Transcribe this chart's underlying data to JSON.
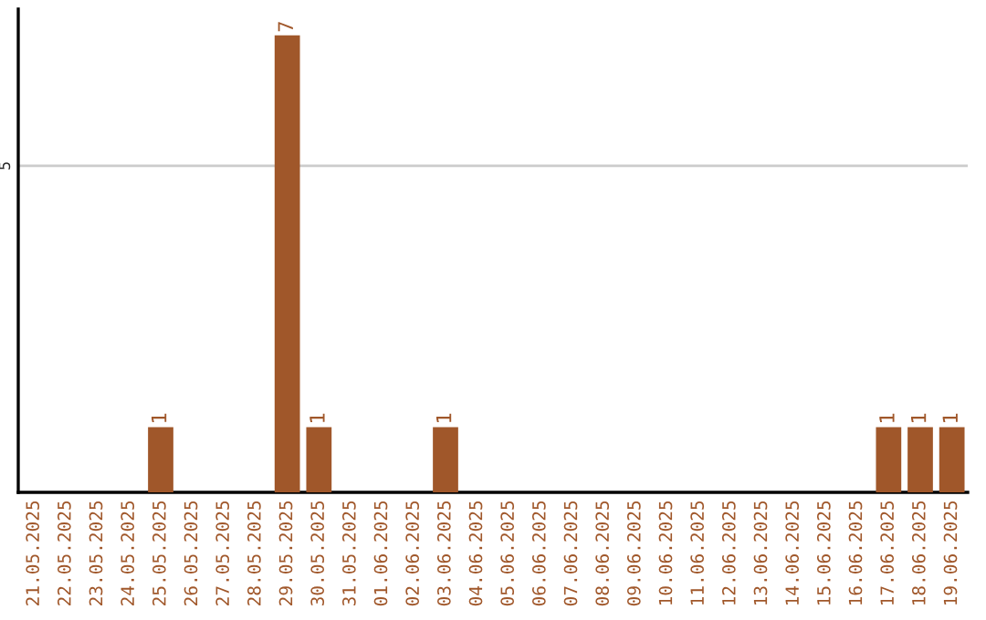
{
  "chart_data": {
    "type": "bar",
    "categories": [
      "21.05.2025",
      "22.05.2025",
      "23.05.2025",
      "24.05.2025",
      "25.05.2025",
      "26.05.2025",
      "27.05.2025",
      "28.05.2025",
      "29.05.2025",
      "30.05.2025",
      "31.05.2025",
      "01.06.2025",
      "02.06.2025",
      "03.06.2025",
      "04.06.2025",
      "05.06.2025",
      "06.06.2025",
      "07.06.2025",
      "08.06.2025",
      "09.06.2025",
      "10.06.2025",
      "11.06.2025",
      "12.06.2025",
      "13.06.2025",
      "14.06.2025",
      "15.06.2025",
      "16.06.2025",
      "17.06.2025",
      "18.06.2025",
      "19.06.2025"
    ],
    "values": [
      0,
      0,
      0,
      0,
      1,
      0,
      0,
      0,
      7,
      1,
      0,
      0,
      0,
      1,
      0,
      0,
      0,
      0,
      0,
      0,
      0,
      0,
      0,
      0,
      0,
      0,
      0,
      1,
      1,
      1
    ],
    "value_labels": [
      null,
      null,
      null,
      null,
      "1",
      null,
      null,
      null,
      "7",
      "1",
      null,
      null,
      null,
      "1",
      null,
      null,
      null,
      null,
      null,
      null,
      null,
      null,
      null,
      null,
      null,
      null,
      null,
      "1",
      "1",
      "1"
    ],
    "color": "#a0572a",
    "ylim": [
      0,
      7.4
    ],
    "yticks": [
      5
    ],
    "grid": "y"
  }
}
